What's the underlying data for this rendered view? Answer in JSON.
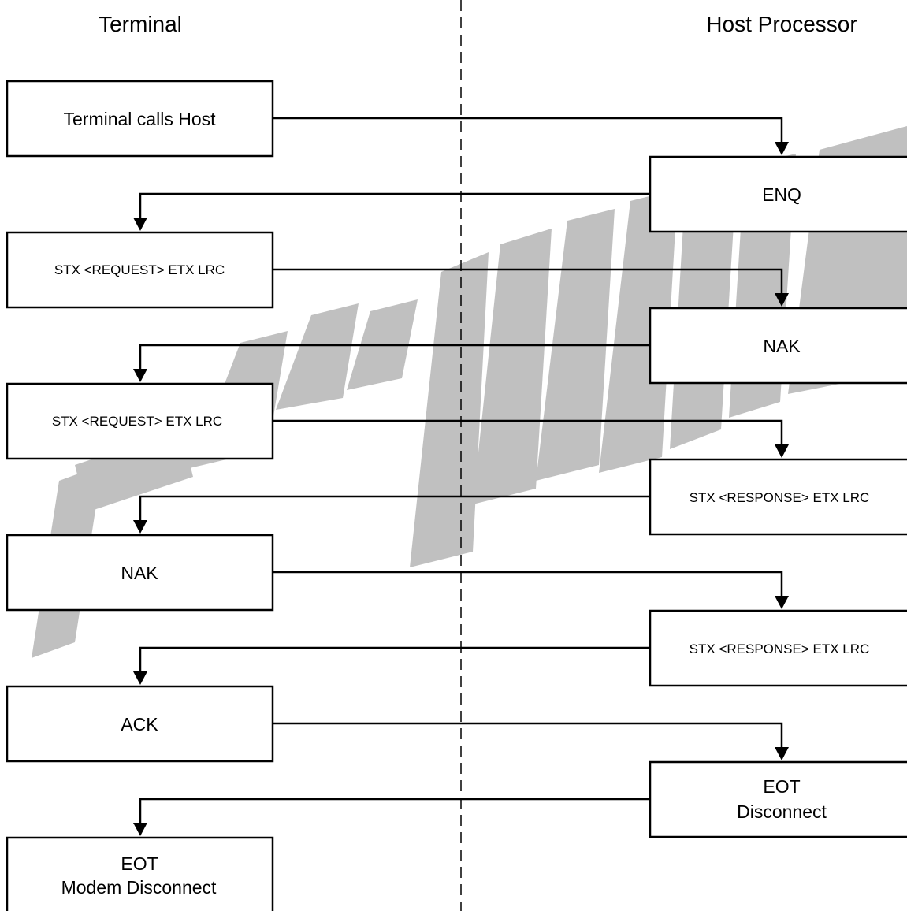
{
  "columns": {
    "terminal": "Terminal",
    "host": "Host Processor"
  },
  "watermark": {
    "text": "PRELIMINARY",
    "color": "#c0c0c0"
  },
  "terminal_boxes": [
    {
      "lines": [
        "Terminal calls Host"
      ]
    },
    {
      "lines": [
        "STX <REQUEST> ETX LRC"
      ]
    },
    {
      "lines": [
        "STX <REQUEST> ETX LRC"
      ]
    },
    {
      "lines": [
        "NAK"
      ]
    },
    {
      "lines": [
        "ACK"
      ]
    },
    {
      "lines": [
        "EOT",
        "Modem Disconnect"
      ]
    }
  ],
  "host_boxes": [
    {
      "lines": [
        "ENQ"
      ]
    },
    {
      "lines": [
        "NAK"
      ]
    },
    {
      "lines": [
        "STX <RESPONSE> ETX LRC"
      ]
    },
    {
      "lines": [
        "STX <RESPONSE> ETX LRC"
      ]
    },
    {
      "lines": [
        "EOT",
        "Disconnect"
      ]
    }
  ]
}
